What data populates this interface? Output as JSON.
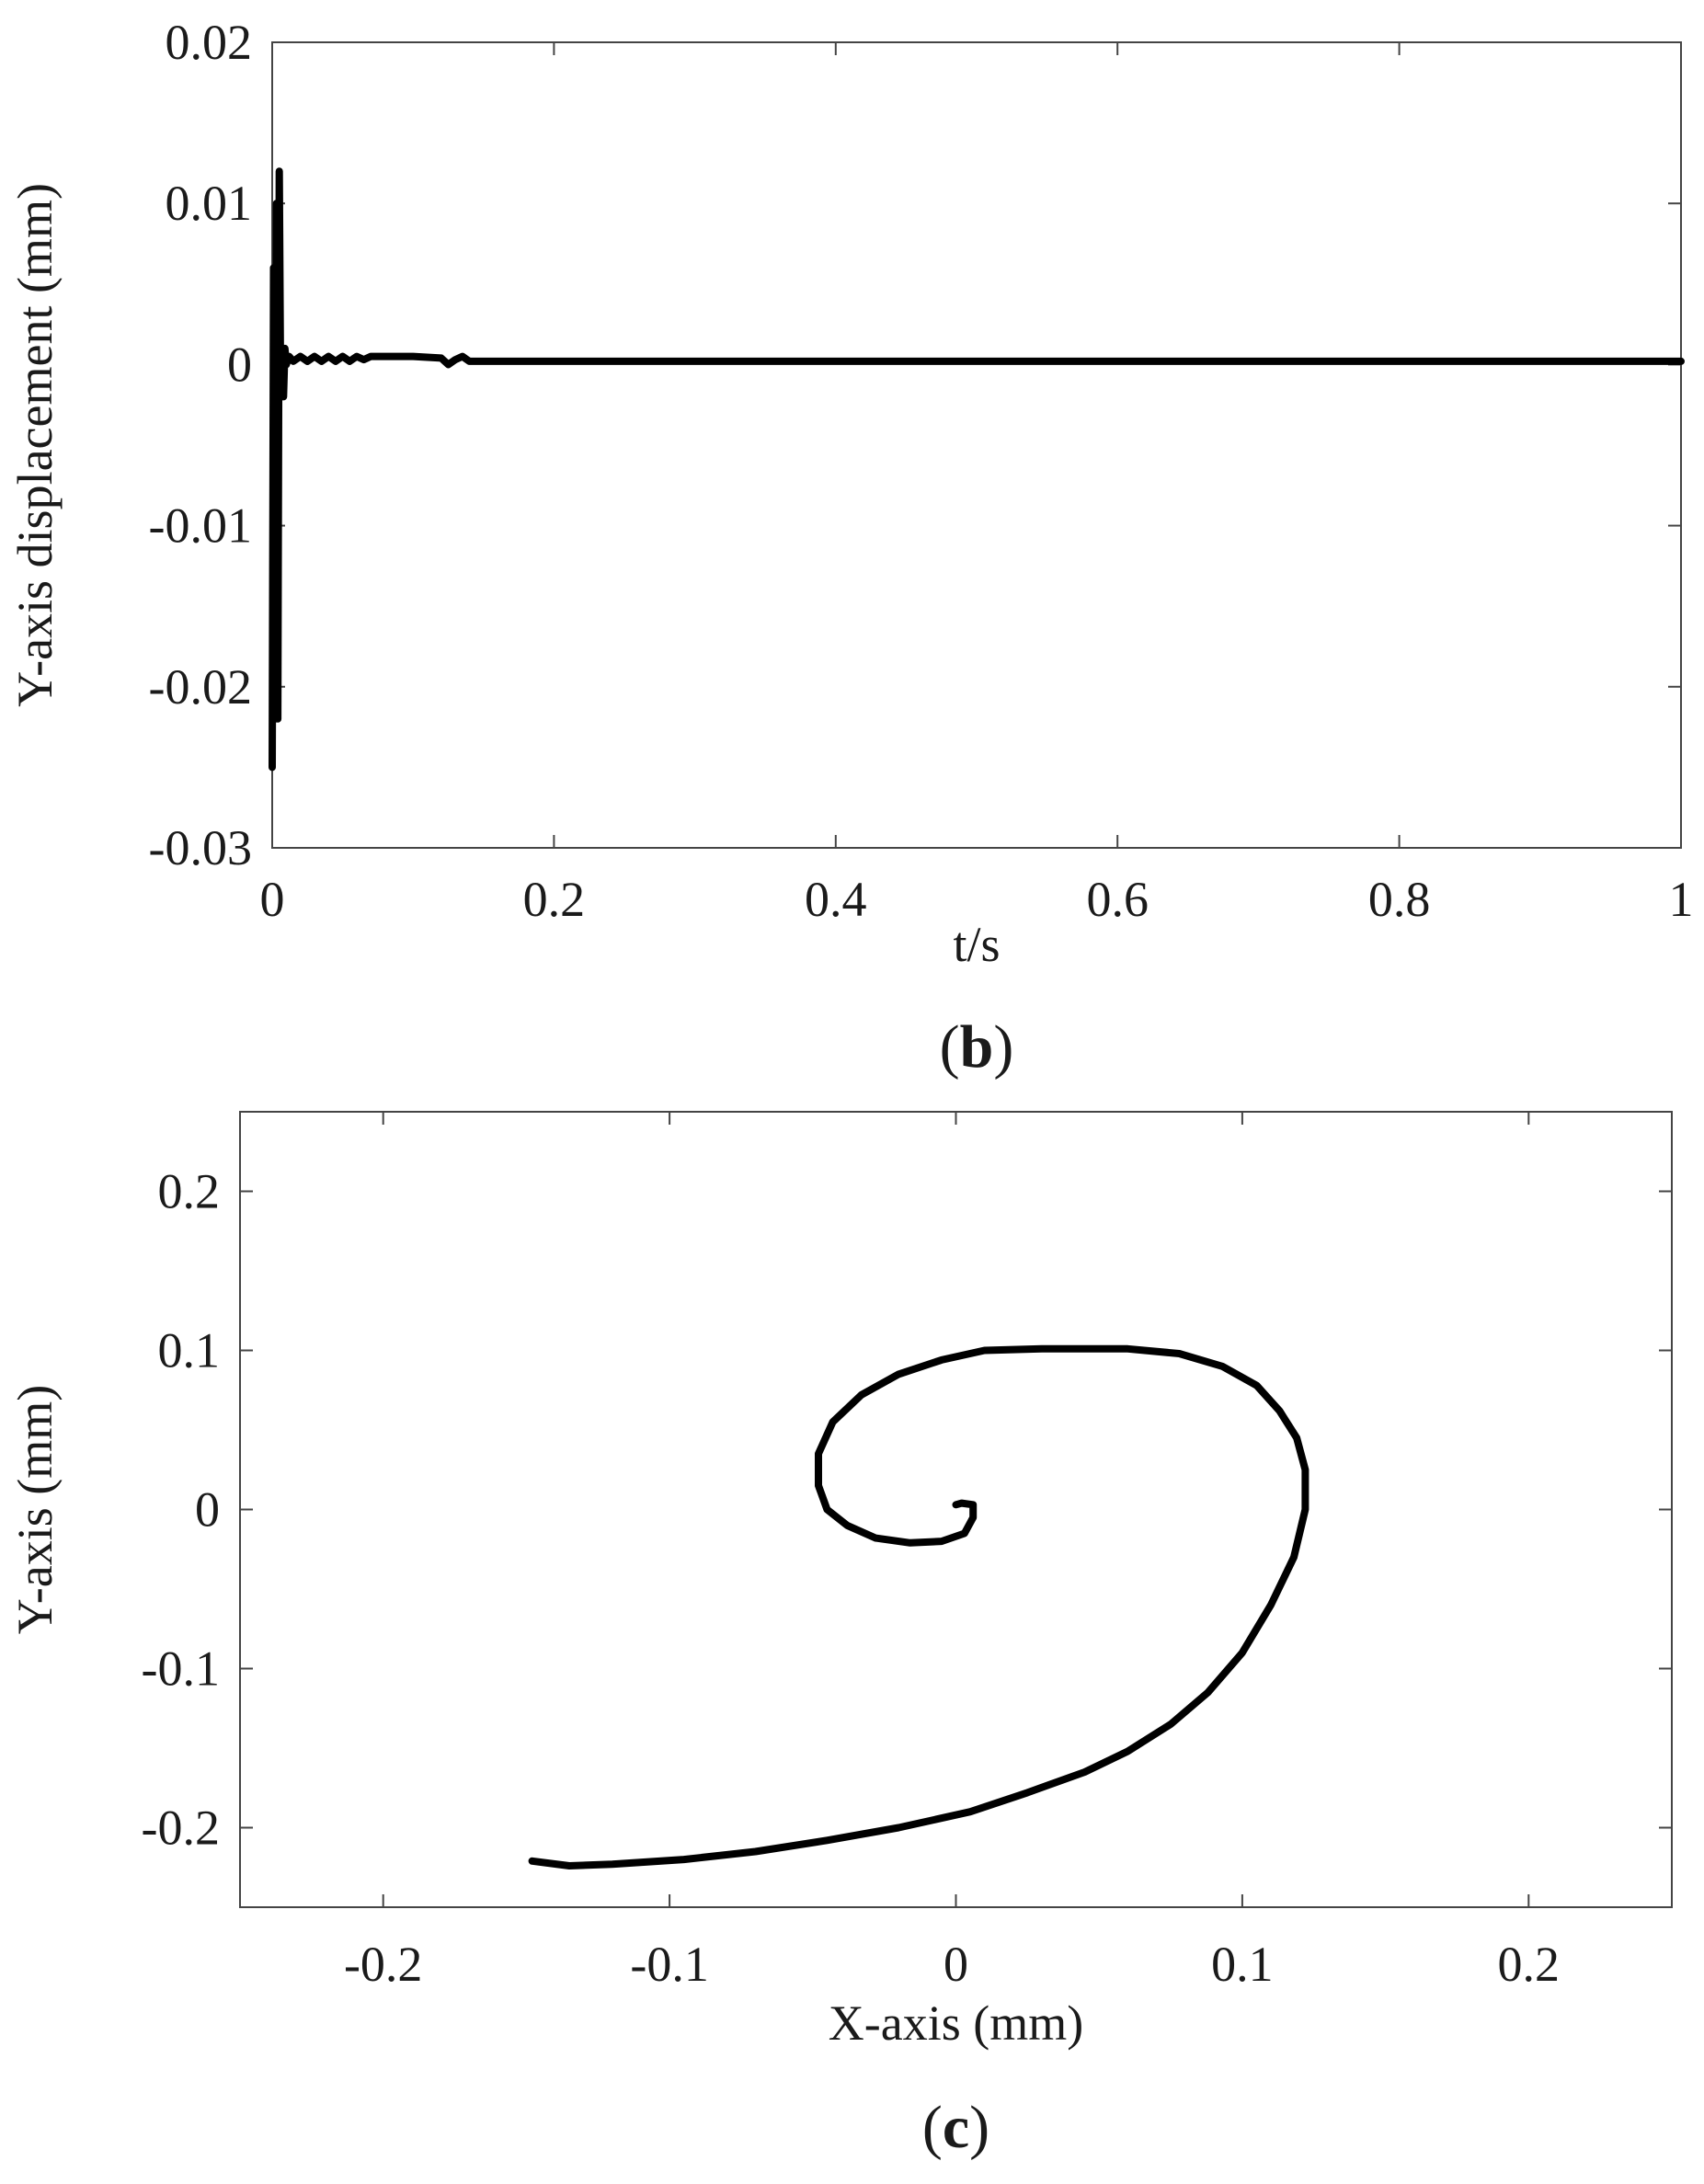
{
  "chart_data": [
    {
      "type": "line",
      "panel_label": "b",
      "title": "",
      "xlabel": "t/s",
      "ylabel": "Y-axis displacement (mm)",
      "xlim": [
        0,
        1
      ],
      "ylim": [
        -0.03,
        0.02
      ],
      "x_ticks": [
        0,
        0.2,
        0.4,
        0.6,
        0.8,
        1
      ],
      "x_tick_labels": [
        "0",
        "0.2",
        "0.4",
        "0.6",
        "0.8",
        "1"
      ],
      "y_ticks": [
        -0.03,
        -0.02,
        -0.01,
        0,
        0.01,
        0.02
      ],
      "y_tick_labels": [
        "-0.03",
        "-0.02",
        "-0.01",
        "0",
        "0.01",
        "0.02"
      ],
      "grid": false,
      "line_color": "#000000",
      "series": [
        {
          "x": [
            0,
            0.001,
            0.002,
            0.003,
            0.004,
            0.005,
            0.006,
            0.007,
            0.008,
            0.009,
            0.01,
            0.012,
            0.015,
            0.02,
            0.025,
            0.03,
            0.035,
            0.04,
            0.045,
            0.05,
            0.055,
            0.06,
            0.065,
            0.07,
            0.1,
            0.12,
            0.125,
            0.13,
            0.135,
            0.14,
            0.2,
            0.4,
            0.6,
            0.8,
            1.0
          ],
          "y": [
            -0.025,
            0.006,
            -0.022,
            0.01,
            -0.022,
            0.012,
            -0.002,
            0.001,
            -0.002,
            0.001,
            0.0,
            0.0005,
            0.0002,
            0.0005,
            0.0002,
            0.0005,
            0.0002,
            0.0005,
            0.0002,
            0.0005,
            0.0002,
            0.0005,
            0.0003,
            0.0005,
            0.0005,
            0.0004,
            0.0,
            0.0003,
            0.0005,
            0.0002,
            0.0002,
            0.0002,
            0.0002,
            0.0002,
            0.0002
          ]
        }
      ]
    },
    {
      "type": "line",
      "panel_label": "c",
      "title": "",
      "xlabel": "X-axis (mm)",
      "ylabel": "Y-axis (mm)",
      "xlim": [
        -0.25,
        0.25
      ],
      "ylim": [
        -0.25,
        0.25
      ],
      "x_ticks": [
        -0.2,
        -0.1,
        0,
        0.1,
        0.2
      ],
      "x_tick_labels": [
        "-0.2",
        "-0.1",
        "0",
        "0.1",
        "0.2"
      ],
      "y_ticks": [
        -0.2,
        -0.1,
        0,
        0.1,
        0.2
      ],
      "y_tick_labels": [
        "-0.2",
        "-0.1",
        "0",
        "0.1",
        "0.2"
      ],
      "grid": false,
      "line_color": "#000000",
      "series": [
        {
          "x": [
            0,
            0.002,
            0.006,
            0.006,
            0.003,
            -0.005,
            -0.016,
            -0.028,
            -0.038,
            -0.045,
            -0.048,
            -0.048,
            -0.043,
            -0.033,
            -0.02,
            -0.005,
            0.01,
            0.03,
            0.045,
            0.06,
            0.078,
            0.093,
            0.105,
            0.113,
            0.119,
            0.122,
            0.122,
            0.118,
            0.11,
            0.1,
            0.088,
            0.075,
            0.06,
            0.045,
            0.025,
            0.005,
            -0.02,
            -0.045,
            -0.07,
            -0.095,
            -0.12,
            -0.135,
            -0.148
          ],
          "y": [
            0.003,
            0.004,
            0.003,
            -0.005,
            -0.015,
            -0.02,
            -0.021,
            -0.018,
            -0.01,
            0.0,
            0.015,
            0.035,
            0.055,
            0.072,
            0.085,
            0.094,
            0.1,
            0.101,
            0.101,
            0.101,
            0.098,
            0.09,
            0.078,
            0.062,
            0.045,
            0.025,
            0.0,
            -0.03,
            -0.06,
            -0.09,
            -0.115,
            -0.135,
            -0.152,
            -0.165,
            -0.178,
            -0.19,
            -0.2,
            -0.208,
            -0.215,
            -0.22,
            -0.223,
            -0.224,
            -0.221
          ]
        }
      ]
    }
  ]
}
